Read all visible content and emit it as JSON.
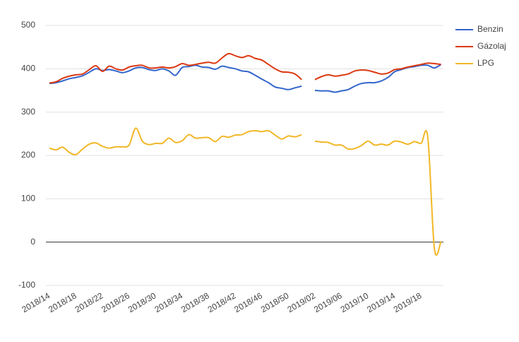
{
  "chart_data": {
    "type": "line",
    "categories": [
      "2018/14",
      null,
      null,
      null,
      "2018/18",
      null,
      null,
      null,
      "2018/22",
      null,
      null,
      null,
      "2018/26",
      null,
      null,
      null,
      "2018/30",
      null,
      null,
      null,
      "2018/34",
      null,
      null,
      null,
      "2018/38",
      null,
      null,
      null,
      "2018/42",
      null,
      null,
      null,
      "2018/46",
      null,
      null,
      null,
      "2018/50",
      null,
      null,
      null,
      "2019/02",
      null,
      null,
      null,
      "2019/06",
      null,
      null,
      null,
      "2019/10",
      null,
      null,
      null,
      "2019/14",
      null,
      null,
      null,
      "2019/18",
      null,
      null,
      null
    ],
    "series": [
      {
        "name": "Benzin",
        "color": "#3366cc",
        "values": [
          366,
          368,
          372,
          377,
          380,
          384,
          392,
          400,
          396,
          398,
          395,
          391,
          395,
          402,
          403,
          398,
          396,
          400,
          395,
          385,
          403,
          405,
          408,
          404,
          403,
          399,
          406,
          403,
          400,
          395,
          393,
          385,
          376,
          368,
          358,
          355,
          352,
          356,
          360,
          null,
          350,
          349,
          349,
          346,
          349,
          352,
          360,
          366,
          368,
          368,
          372,
          380,
          393,
          398,
          403,
          405,
          408,
          408,
          402,
          410
        ]
      },
      {
        "name": "Gázolaj",
        "color": "#dc3912",
        "values": [
          367,
          370,
          378,
          383,
          386,
          388,
          398,
          407,
          394,
          406,
          400,
          397,
          404,
          407,
          408,
          402,
          402,
          404,
          402,
          405,
          412,
          408,
          410,
          413,
          415,
          413,
          425,
          435,
          430,
          426,
          430,
          424,
          420,
          410,
          400,
          393,
          392,
          388,
          375,
          null,
          375,
          382,
          386,
          383,
          385,
          388,
          395,
          397,
          396,
          392,
          388,
          390,
          398,
          400,
          404,
          407,
          410,
          413,
          412,
          410
        ]
      },
      {
        "name": "LPG",
        "color": "#f1b726",
        "values": [
          217,
          213,
          219,
          207,
          202,
          215,
          226,
          229,
          221,
          217,
          220,
          220,
          224,
          263,
          233,
          225,
          228,
          228,
          240,
          230,
          234,
          248,
          240,
          241,
          241,
          232,
          244,
          242,
          247,
          248,
          255,
          257,
          255,
          257,
          247,
          238,
          245,
          243,
          248,
          null,
          233,
          231,
          230,
          224,
          224,
          215,
          216,
          223,
          233,
          224,
          226,
          224,
          233,
          231,
          226,
          232,
          228,
          242,
          -15,
          2
        ]
      }
    ],
    "ylim": [
      -100,
      500
    ],
    "yticks": [
      -100,
      0,
      100,
      200,
      300,
      400,
      500
    ],
    "grid": true,
    "legend": "right"
  }
}
